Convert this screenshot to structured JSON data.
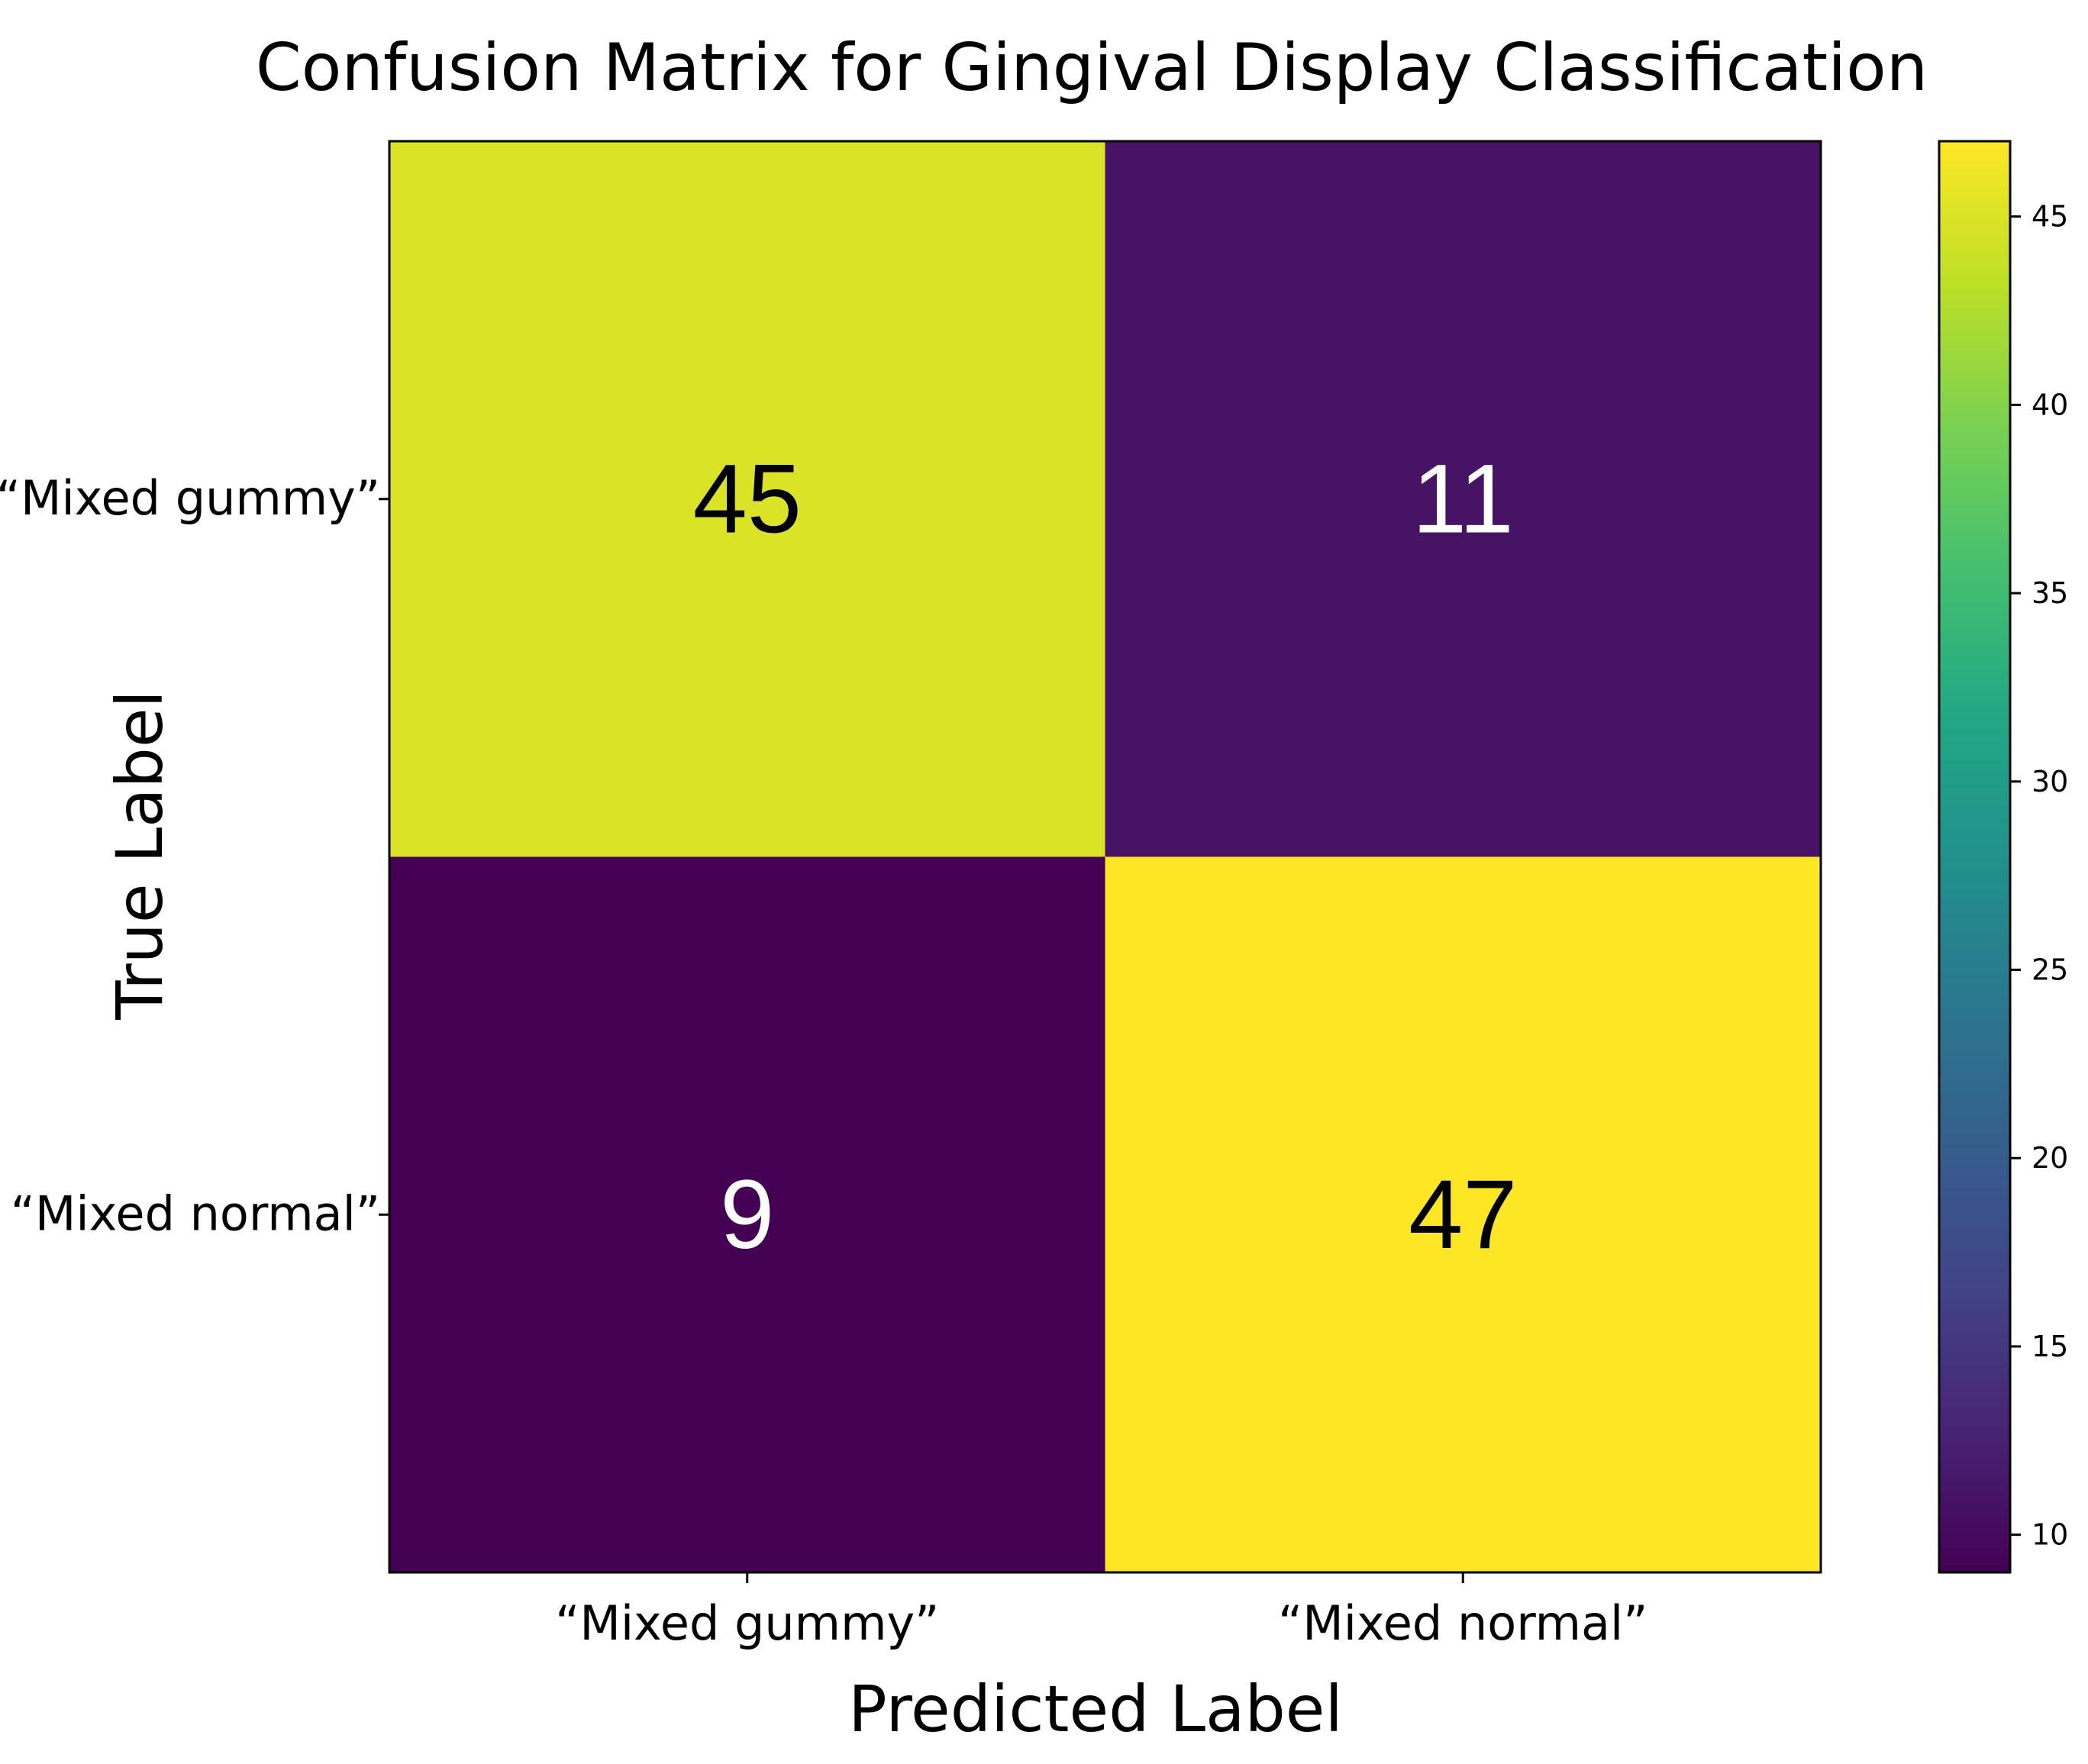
{
  "chart_data": {
    "type": "heatmap",
    "title": "Confusion Matrix for Gingival Display Classification",
    "xlabel": "Predicted Label",
    "ylabel": "True Label",
    "x_categories": [
      "“Mixed gummy”",
      "“Mixed normal”"
    ],
    "y_categories": [
      "“Mixed gummy”",
      "“Mixed normal”"
    ],
    "values": [
      [
        45,
        11
      ],
      [
        9,
        47
      ]
    ],
    "colormap": "viridis",
    "colorbar": {
      "range": [
        9,
        47
      ],
      "ticks": [
        10,
        15,
        20,
        25,
        30,
        35,
        40,
        45
      ]
    },
    "grid": false
  }
}
